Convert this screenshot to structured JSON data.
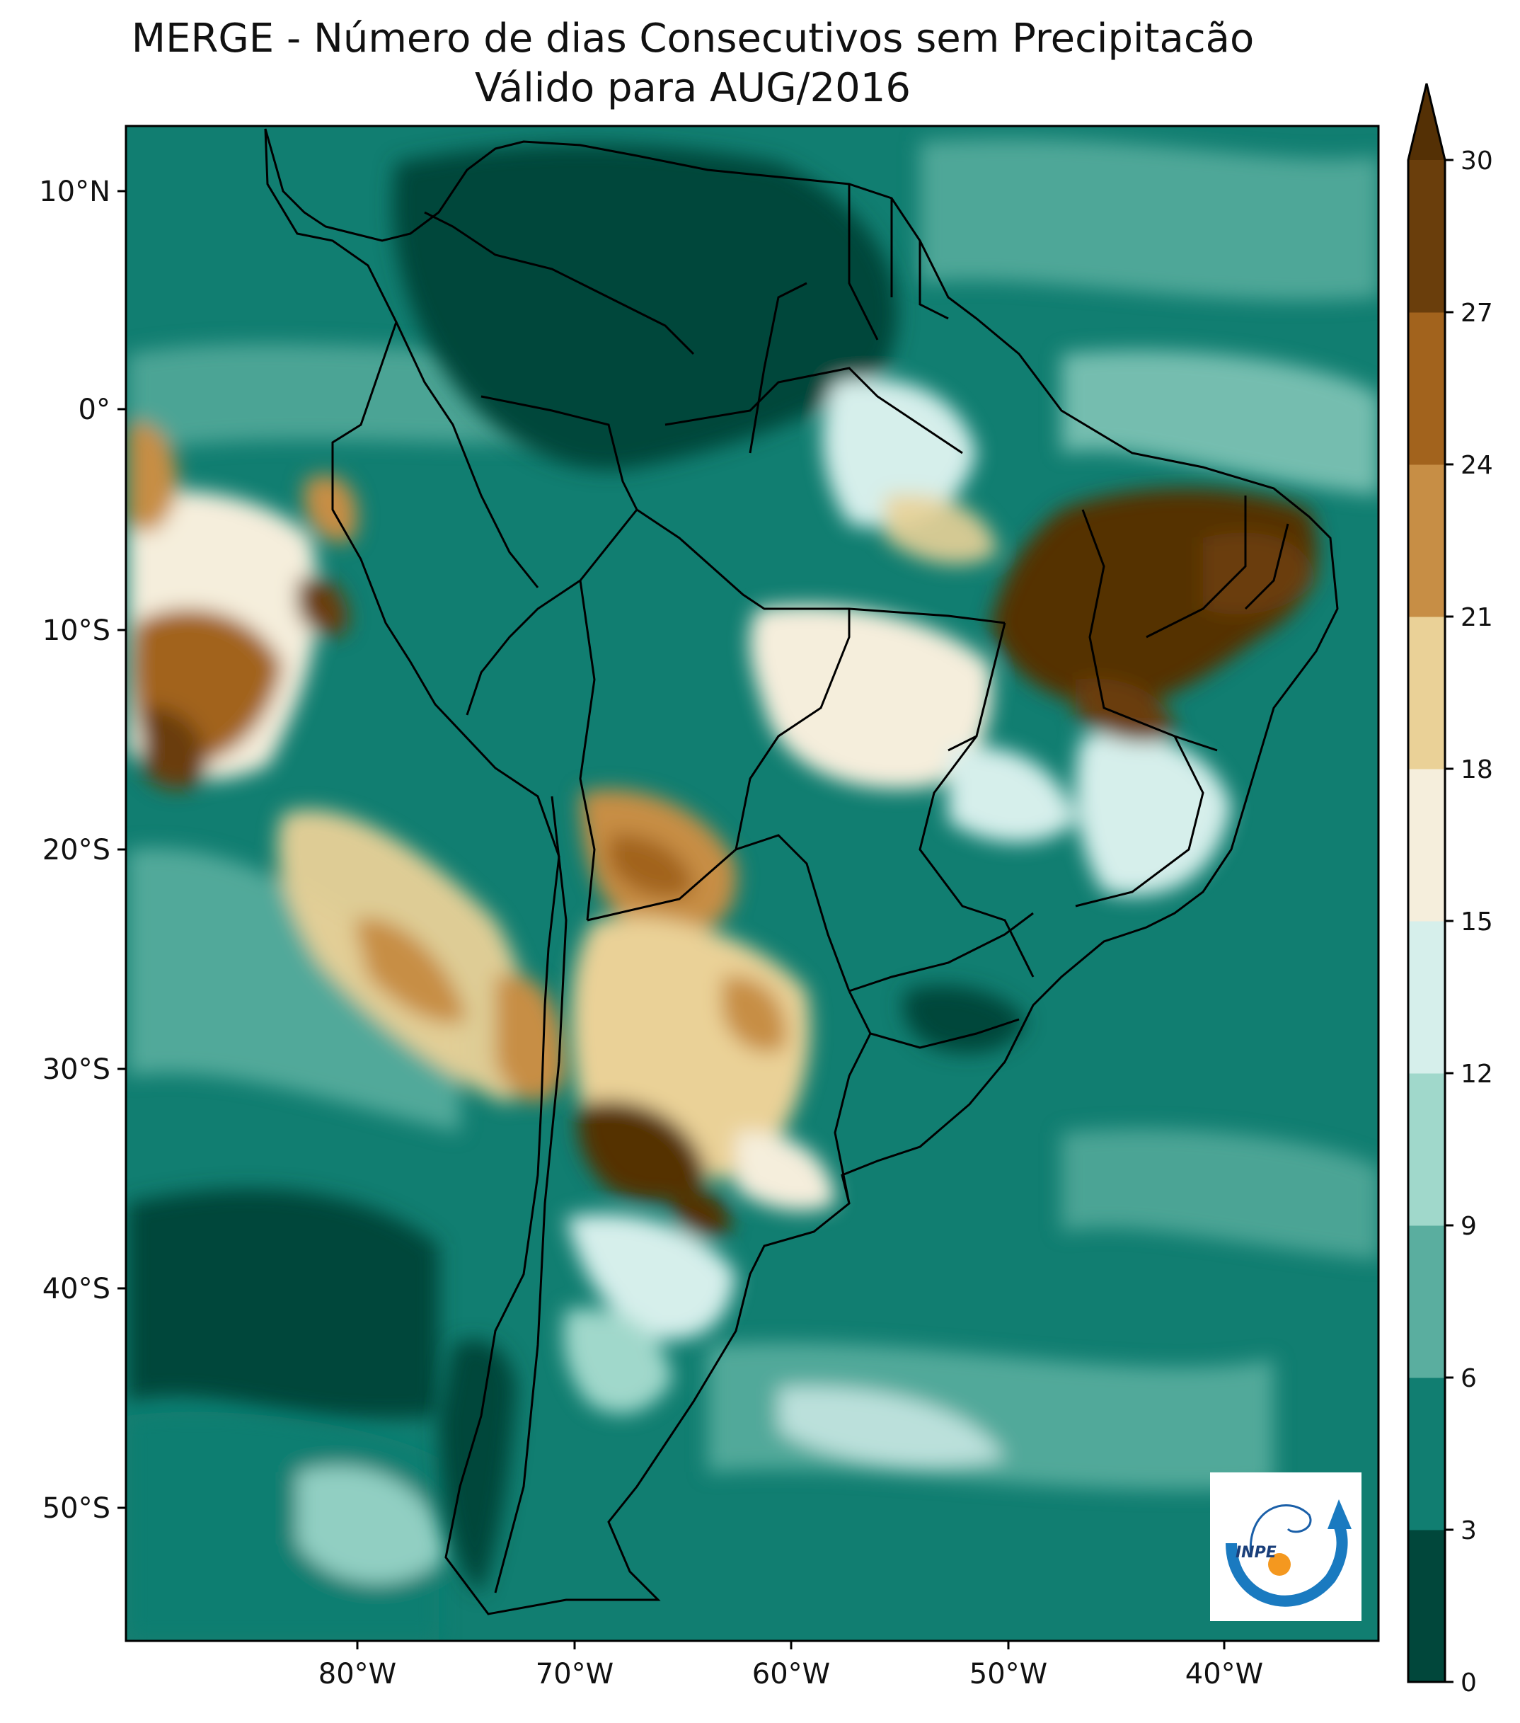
{
  "title": {
    "line1": "MERGE - Número de dias Consecutivos sem Precipitacão",
    "line2": "Válido para AUG/2016"
  },
  "map": {
    "lat_labels": [
      "10°N",
      "0°",
      "10°S",
      "20°S",
      "30°S",
      "40°S",
      "50°S"
    ],
    "lon_labels": [
      "80°W",
      "70°W",
      "60°W",
      "50°W",
      "40°W"
    ]
  },
  "colorbar": {
    "ticks": [
      "0",
      "3",
      "6",
      "9",
      "12",
      "15",
      "18",
      "21",
      "24",
      "27",
      "30"
    ],
    "colors": [
      "#01473b",
      "#117e71",
      "#5aae9f",
      "#a0d8cb",
      "#d6efeb",
      "#f5eedc",
      "#ead197",
      "#c78e45",
      "#a2631d",
      "#6a3e0c"
    ],
    "extend_color": "#543005"
  },
  "logo": {
    "text": "INPE"
  }
}
